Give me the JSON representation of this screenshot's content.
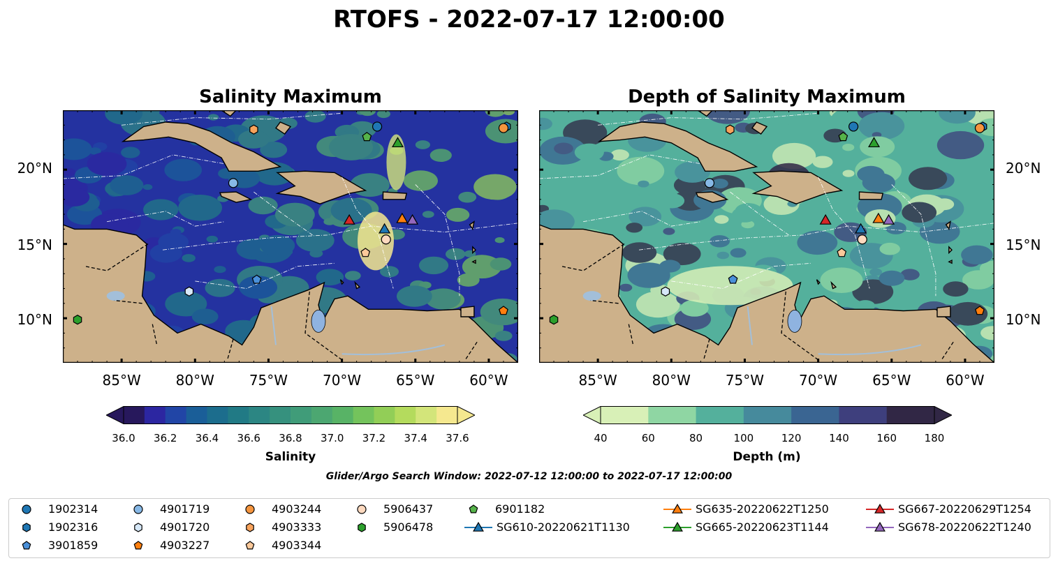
{
  "figure": {
    "title": "RTOFS - 2022-07-17 12:00:00",
    "search_window": "Glider/Argo Search Window: 2022-07-12 12:00:00 to 2022-07-17 12:00:00"
  },
  "lat_ticks": [
    "20°N",
    "15°N",
    "10°N"
  ],
  "lon_ticks": [
    "85°W",
    "80°W",
    "75°W",
    "70°W",
    "65°W",
    "60°W"
  ],
  "panels": [
    {
      "title": "Salinity Maximum",
      "colorbar": {
        "label": "Salinity",
        "ticks": [
          "36.0",
          "36.2",
          "36.4",
          "36.6",
          "36.8",
          "37.0",
          "37.2",
          "37.4",
          "37.6"
        ],
        "colors": [
          "#27185c",
          "#2c26a1",
          "#2145a6",
          "#1a5e98",
          "#1c6d8d",
          "#217a85",
          "#2c8683",
          "#36917e",
          "#409c79",
          "#4ca771",
          "#58b366",
          "#74c35c",
          "#92ce57",
          "#b4db5d",
          "#d3e57a",
          "#f5e88f"
        ]
      },
      "background": "#2432a0"
    },
    {
      "title": "Depth of Salinity Maximum",
      "colorbar": {
        "label": "Depth (m)",
        "ticks": [
          "40",
          "60",
          "80",
          "100",
          "120",
          "140",
          "160",
          "180"
        ],
        "colors": [
          "#d8f0b7",
          "#8fd6a3",
          "#54b09c",
          "#468a9c",
          "#3a6592",
          "#3e3f7d",
          "#312745"
        ]
      },
      "background": "#54b09c"
    }
  ],
  "legend": [
    {
      "label": "1902314",
      "marker": "circle",
      "color": "#1f77b4"
    },
    {
      "label": "1902316",
      "marker": "hexagon",
      "color": "#1f77b4"
    },
    {
      "label": "3901859",
      "marker": "pentagon",
      "color": "#4a90d9"
    },
    {
      "label": "4901719",
      "marker": "circle",
      "color": "#87b8e6"
    },
    {
      "label": "4901720",
      "marker": "hexagon",
      "color": "#d6e8f8"
    },
    {
      "label": "4903227",
      "marker": "pentagon",
      "color": "#ff7f0e"
    },
    {
      "label": "4903244",
      "marker": "circle",
      "color": "#f5953e"
    },
    {
      "label": "4903333",
      "marker": "hexagon",
      "color": "#f8a35c"
    },
    {
      "label": "4903344",
      "marker": "pentagon",
      "color": "#fcc99a"
    },
    {
      "label": "5906437",
      "marker": "circle",
      "color": "#fdd9bf"
    },
    {
      "label": "5906478",
      "marker": "hexagon",
      "color": "#2ca02c"
    },
    {
      "label": "6901182",
      "marker": "pentagon",
      "color": "#56b34a"
    },
    {
      "label": "SG610-20220621T1130",
      "marker": "triangle-line",
      "color": "#1f77b4"
    },
    {
      "label": "SG635-20220622T1250",
      "marker": "triangle-line",
      "color": "#ff7f0e"
    },
    {
      "label": "SG665-20220623T1144",
      "marker": "triangle-line",
      "color": "#2ca02c"
    },
    {
      "label": "SG667-20220629T1254",
      "marker": "triangle-line",
      "color": "#d62728"
    },
    {
      "label": "SG678-20220622T1240",
      "marker": "triangle-line",
      "color": "#9467bd"
    }
  ],
  "observations": [
    {
      "label": "1902314",
      "lon": -67.6,
      "lat": 22.9
    },
    {
      "label": "1902316",
      "lon": -58.8,
      "lat": 22.9
    },
    {
      "label": "3901859",
      "lon": -75.8,
      "lat": 12.6
    },
    {
      "label": "4901719",
      "lon": -77.4,
      "lat": 19.1
    },
    {
      "label": "4901720",
      "lon": -80.4,
      "lat": 11.8
    },
    {
      "label": "4903227",
      "lon": -59.0,
      "lat": 10.5
    },
    {
      "label": "4903244",
      "lon": -59.0,
      "lat": 22.8
    },
    {
      "label": "4903333",
      "lon": -76.0,
      "lat": 22.7
    },
    {
      "label": "4903344",
      "lon": -68.4,
      "lat": 14.4
    },
    {
      "label": "5906437",
      "lon": -67.0,
      "lat": 15.3
    },
    {
      "label": "5906478",
      "lon": -88.0,
      "lat": 9.9
    },
    {
      "label": "6901182",
      "lon": -68.3,
      "lat": 22.2
    },
    {
      "label": "SG610-20220621T1130",
      "lon": -67.1,
      "lat": 16.0
    },
    {
      "label": "SG635-20220622T1250",
      "lon": -65.9,
      "lat": 16.7
    },
    {
      "label": "SG665-20220623T1144",
      "lon": -66.2,
      "lat": 21.8
    },
    {
      "label": "SG667-20220629T1254",
      "lon": -69.5,
      "lat": 16.6
    },
    {
      "label": "SG678-20220622T1240",
      "lon": -65.2,
      "lat": 16.6
    }
  ],
  "colors": {
    "land": "#cdb18a",
    "coast": "#000000",
    "rivers": "#a3bfd9"
  }
}
